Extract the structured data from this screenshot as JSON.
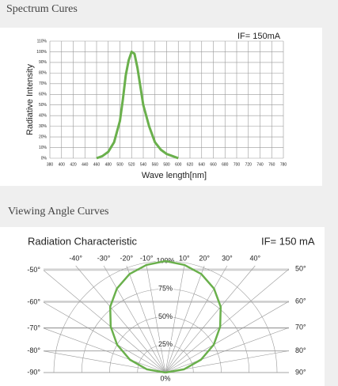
{
  "chart_data": [
    {
      "type": "line",
      "heading": "Spectrum Cures",
      "annotation": "IF= 150mA",
      "xlabel": "Wave length[nm]",
      "ylabel": "Radiative Intensity",
      "x": [
        460,
        470,
        480,
        490,
        500,
        505,
        510,
        515,
        520,
        525,
        530,
        540,
        550,
        560,
        570,
        580,
        590,
        600
      ],
      "series": [
        {
          "color": "#6ab04c",
          "values": [
            0,
            2,
            6,
            15,
            35,
            55,
            78,
            92,
            100,
            98,
            85,
            50,
            30,
            15,
            8,
            4,
            2,
            0
          ]
        }
      ],
      "xlim": [
        380,
        780
      ],
      "xticks": [
        380,
        400,
        420,
        440,
        460,
        480,
        500,
        520,
        540,
        560,
        580,
        600,
        620,
        640,
        660,
        680,
        700,
        720,
        740,
        760,
        780
      ],
      "ylim": [
        0,
        110
      ],
      "yticks": [
        {
          "value": 0,
          "label": "0%"
        },
        {
          "value": 10,
          "label": "10%"
        },
        {
          "value": 20,
          "label": "20%"
        },
        {
          "value": 30,
          "label": "30%"
        },
        {
          "value": 40,
          "label": "40%"
        },
        {
          "value": 50,
          "label": "50%"
        },
        {
          "value": 60,
          "label": "60%"
        },
        {
          "value": 70,
          "label": "70%"
        },
        {
          "value": 80,
          "label": "80%"
        },
        {
          "value": 90,
          "label": "90%"
        },
        {
          "value": 100,
          "label": "100%"
        },
        {
          "value": 110,
          "label": "110%"
        }
      ],
      "grid": true
    },
    {
      "type": "polar",
      "heading": "Viewing Angle Curves",
      "title": "Radiation Characteristic",
      "annotation": "IF= 150 mA",
      "theta": [
        -90,
        -80,
        -70,
        -60,
        -50,
        -40,
        -30,
        -20,
        -10,
        0,
        10,
        20,
        30,
        40,
        50,
        60,
        70,
        80,
        90
      ],
      "series": [
        {
          "color": "#6ab04c",
          "values": [
            0,
            17,
            34,
            50,
            64,
            77,
            87,
            94,
            98,
            100,
            98,
            94,
            87,
            77,
            64,
            50,
            34,
            17,
            0
          ]
        }
      ],
      "rlim": [
        0,
        100
      ],
      "rticks": [
        {
          "value": 0,
          "label": "0%"
        },
        {
          "value": 25,
          "label": "25%"
        },
        {
          "value": 50,
          "label": "50%"
        },
        {
          "value": 75,
          "label": "75%"
        },
        {
          "value": 100,
          "label": "100%"
        }
      ],
      "thetaticks": [
        {
          "value": -90,
          "label": "-90°"
        },
        {
          "value": -80,
          "label": "-80°"
        },
        {
          "value": -70,
          "label": "-70°"
        },
        {
          "value": -60,
          "label": "-60°"
        },
        {
          "value": -50,
          "label": "-50°"
        },
        {
          "value": -40,
          "label": "-40°"
        },
        {
          "value": -30,
          "label": "-30°"
        },
        {
          "value": -20,
          "label": "-20°"
        },
        {
          "value": -10,
          "label": "-10°"
        },
        {
          "value": 10,
          "label": "10°"
        },
        {
          "value": 20,
          "label": "20°"
        },
        {
          "value": 30,
          "label": "30°"
        },
        {
          "value": 40,
          "label": "40°"
        },
        {
          "value": 50,
          "label": "50°"
        },
        {
          "value": 60,
          "label": "60°"
        },
        {
          "value": 70,
          "label": "70°"
        },
        {
          "value": 80,
          "label": "80°"
        },
        {
          "value": 90,
          "label": "90°"
        }
      ]
    }
  ]
}
